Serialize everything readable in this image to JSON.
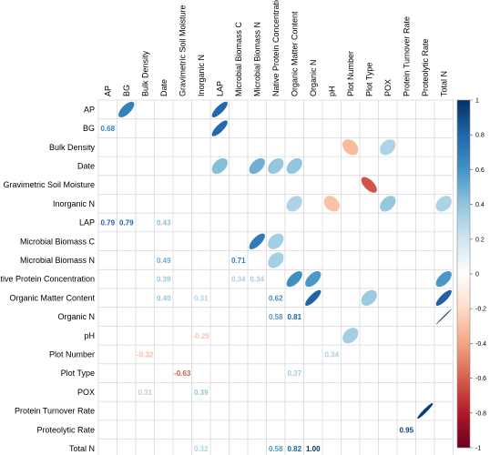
{
  "chart_data": {
    "type": "heatmap",
    "variables": [
      "AP",
      "BG",
      "Bulk Density",
      "Date",
      "Gravimetric Soil Moisture",
      "Inorganic N",
      "LAP",
      "Microbial Biomass C",
      "Microbial Biomass N",
      "Native Protein Concentration",
      "Organic Matter Content",
      "Organic N",
      "pH",
      "Plot Number",
      "Plot Type",
      "POX",
      "Protein Turnover Rate",
      "Proteolytic Rate",
      "Total N"
    ],
    "upper_ellipses": [
      {
        "row": "AP",
        "col": "BG",
        "r": 0.68
      },
      {
        "row": "AP",
        "col": "LAP",
        "r": 0.79
      },
      {
        "row": "BG",
        "col": "LAP",
        "r": 0.79
      },
      {
        "row": "Bulk Density",
        "col": "Plot Number",
        "r": -0.32
      },
      {
        "row": "Bulk Density",
        "col": "POX",
        "r": 0.31
      },
      {
        "row": "Date",
        "col": "LAP",
        "r": 0.43
      },
      {
        "row": "Date",
        "col": "Microbial Biomass N",
        "r": 0.49
      },
      {
        "row": "Date",
        "col": "Native Protein Concentration",
        "r": 0.39
      },
      {
        "row": "Date",
        "col": "Organic Matter Content",
        "r": 0.4
      },
      {
        "row": "Gravimetric Soil Moisture",
        "col": "Plot Type",
        "r": -0.63
      },
      {
        "row": "Inorganic N",
        "col": "Organic Matter Content",
        "r": 0.31
      },
      {
        "row": "Inorganic N",
        "col": "pH",
        "r": -0.29
      },
      {
        "row": "Inorganic N",
        "col": "POX",
        "r": 0.39
      },
      {
        "row": "Inorganic N",
        "col": "Total N",
        "r": 0.32
      },
      {
        "row": "Microbial Biomass C",
        "col": "Microbial Biomass N",
        "r": 0.71
      },
      {
        "row": "Microbial Biomass C",
        "col": "Native Protein Concentration",
        "r": 0.34
      },
      {
        "row": "Microbial Biomass N",
        "col": "Native Protein Concentration",
        "r": 0.34
      },
      {
        "row": "Native Protein Concentration",
        "col": "Organic Matter Content",
        "r": 0.62
      },
      {
        "row": "Native Protein Concentration",
        "col": "Organic N",
        "r": 0.58
      },
      {
        "row": "Native Protein Concentration",
        "col": "Total N",
        "r": 0.58
      },
      {
        "row": "Organic Matter Content",
        "col": "Organic N",
        "r": 0.81
      },
      {
        "row": "Organic Matter Content",
        "col": "Plot Type",
        "r": 0.37
      },
      {
        "row": "Organic Matter Content",
        "col": "Total N",
        "r": 0.82
      },
      {
        "row": "Organic N",
        "col": "Total N",
        "r": 1.0
      },
      {
        "row": "pH",
        "col": "Plot Number",
        "r": 0.34
      },
      {
        "row": "Protein Turnover Rate",
        "col": "Proteolytic Rate",
        "r": 0.95
      }
    ],
    "lower_values": [
      {
        "row": "BG",
        "col": "AP",
        "value": 0.68,
        "label": "0.68"
      },
      {
        "row": "LAP",
        "col": "AP",
        "value": 0.79,
        "label": "0.79"
      },
      {
        "row": "LAP",
        "col": "BG",
        "value": 0.79,
        "label": "0.79"
      },
      {
        "row": "LAP",
        "col": "Date",
        "value": 0.43,
        "label": "0.43"
      },
      {
        "row": "Microbial Biomass N",
        "col": "Date",
        "value": 0.49,
        "label": "0.49"
      },
      {
        "row": "Microbial Biomass N",
        "col": "Microbial Biomass C",
        "value": 0.71,
        "label": "0.71"
      },
      {
        "row": "Native Protein Concentration",
        "col": "Date",
        "value": 0.39,
        "label": "0.39"
      },
      {
        "row": "Native Protein Concentration",
        "col": "Microbial Biomass C",
        "value": 0.34,
        "label": "0.34"
      },
      {
        "row": "Native Protein Concentration",
        "col": "Microbial Biomass N",
        "value": 0.34,
        "label": "0.34"
      },
      {
        "row": "Organic Matter Content",
        "col": "Date",
        "value": 0.4,
        "label": "0.40"
      },
      {
        "row": "Organic Matter Content",
        "col": "Inorganic N",
        "value": 0.31,
        "label": "0.31"
      },
      {
        "row": "Organic Matter Content",
        "col": "Native Protein Concentration",
        "value": 0.62,
        "label": "0.62"
      },
      {
        "row": "Organic N",
        "col": "Native Protein Concentration",
        "value": 0.58,
        "label": "0.58"
      },
      {
        "row": "Organic N",
        "col": "Organic Matter Content",
        "value": 0.81,
        "label": "0.81"
      },
      {
        "row": "pH",
        "col": "Inorganic N",
        "value": -0.29,
        "label": "-0.29"
      },
      {
        "row": "Plot Number",
        "col": "Bulk Density",
        "value": -0.32,
        "label": "-0.32"
      },
      {
        "row": "Plot Number",
        "col": "pH",
        "value": 0.34,
        "label": "0.34"
      },
      {
        "row": "Plot Type",
        "col": "Gravimetric Soil Moisture",
        "value": -0.63,
        "label": "-0.63"
      },
      {
        "row": "Plot Type",
        "col": "Organic Matter Content",
        "value": 0.37,
        "label": "0.37"
      },
      {
        "row": "POX",
        "col": "Bulk Density",
        "value": 0.31,
        "label": "0.31"
      },
      {
        "row": "POX",
        "col": "Inorganic N",
        "value": 0.39,
        "label": "0.39"
      },
      {
        "row": "Proteolytic Rate",
        "col": "Protein Turnover Rate",
        "value": 0.95,
        "label": "0.95"
      },
      {
        "row": "Total N",
        "col": "Inorganic N",
        "value": 0.32,
        "label": "0.32"
      },
      {
        "row": "Total N",
        "col": "Native Protein Concentration",
        "value": 0.58,
        "label": "0.58"
      },
      {
        "row": "Total N",
        "col": "Organic Matter Content",
        "value": 0.82,
        "label": "0.82"
      },
      {
        "row": "Total N",
        "col": "Organic N",
        "value": 1.0,
        "label": "1.00"
      }
    ],
    "colorbar": {
      "range": [
        -1,
        1
      ],
      "ticks": [
        "1",
        "0.8",
        "0.6",
        "0.4",
        "0.2",
        "0",
        "-0.2",
        "-0.4",
        "-0.6",
        "-0.8",
        "-1"
      ],
      "colors": {
        "negative": "#67001f",
        "zero": "#ffffff",
        "positive": "#053061"
      },
      "placement": "right"
    },
    "grid": true,
    "title": "",
    "xlabel": "",
    "ylabel": ""
  }
}
